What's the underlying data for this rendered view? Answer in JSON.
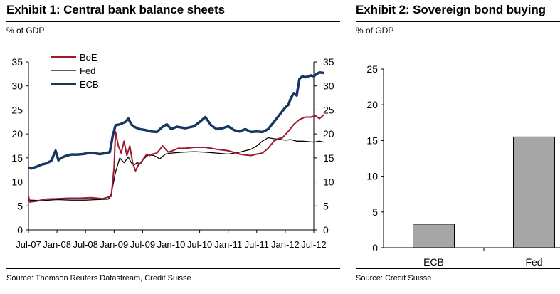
{
  "chart_data": [
    {
      "type": "line",
      "title": "Exhibit 1: Central bank balance sheets",
      "unit_label": "% of GDP",
      "source": "Source: Thomson Reuters Datastream, Credit Suisse",
      "x_ticks": [
        "Jul-07",
        "Jan-08",
        "Jul-08",
        "Jan-09",
        "Jul-09",
        "Jan-10",
        "Jul-10",
        "Jan-11",
        "Jul-11",
        "Jan-12",
        "Jul-12"
      ],
      "ylim": [
        0,
        35
      ],
      "y_ticks": [
        0,
        5,
        10,
        15,
        20,
        25,
        30,
        35
      ],
      "legend": "top-left",
      "series": [
        {
          "name": "BoE",
          "color": "#9b1b30",
          "x": [
            0,
            0.05,
            0.3,
            0.6,
            1.0,
            1.4,
            1.8,
            2.2,
            2.6,
            2.9,
            3.0,
            3.05,
            3.15,
            3.25,
            3.35,
            3.45,
            3.55,
            3.65,
            3.75,
            3.85,
            3.95,
            4.05,
            4.15,
            4.25,
            4.35,
            4.5,
            4.7,
            4.9,
            5.05,
            5.25,
            5.5,
            5.8,
            6.2,
            6.6,
            7.0,
            7.4,
            7.6,
            7.8,
            8.0,
            8.2,
            8.4,
            8.6,
            8.75,
            8.9,
            9.1,
            9.3,
            9.5,
            9.7,
            9.9,
            10.05,
            10.2,
            10.35
          ],
          "values": [
            7.0,
            5.8,
            6.0,
            6.4,
            6.5,
            6.6,
            6.6,
            6.7,
            6.5,
            7.0,
            13.0,
            20.5,
            17.5,
            16.0,
            18.5,
            15.5,
            17.5,
            14.0,
            12.3,
            13.5,
            14.0,
            15.0,
            15.8,
            15.5,
            15.8,
            16.0,
            17.5,
            16.2,
            16.5,
            17.0,
            17.0,
            17.2,
            17.2,
            16.8,
            16.5,
            15.8,
            15.6,
            15.5,
            15.8,
            16.0,
            17.0,
            18.5,
            19.0,
            19.2,
            20.5,
            22.0,
            23.0,
            23.5,
            23.5,
            23.8,
            23.2,
            24.0
          ]
        },
        {
          "name": "Fed",
          "color": "#000000",
          "x": [
            0,
            0.5,
            1.0,
            1.5,
            2.0,
            2.4,
            2.8,
            2.9,
            3.05,
            3.2,
            3.35,
            3.5,
            3.6,
            3.7,
            3.8,
            3.9,
            4.0,
            4.2,
            4.4,
            4.6,
            4.8,
            5.0,
            5.4,
            5.8,
            6.2,
            6.6,
            7.0,
            7.4,
            7.8,
            8.0,
            8.2,
            8.4,
            8.6,
            8.8,
            9.0,
            9.2,
            9.4,
            9.6,
            9.8,
            10.0,
            10.2,
            10.35
          ],
          "values": [
            6.2,
            6.1,
            6.3,
            6.2,
            6.2,
            6.3,
            6.4,
            7.5,
            12.0,
            15.0,
            14.0,
            15.2,
            14.0,
            13.5,
            14.0,
            13.8,
            14.6,
            15.6,
            15.5,
            14.8,
            15.8,
            16.0,
            16.2,
            16.3,
            16.2,
            16.0,
            15.8,
            16.2,
            16.8,
            17.5,
            18.5,
            19.2,
            19.0,
            18.9,
            18.7,
            18.8,
            18.5,
            18.5,
            18.4,
            18.3,
            18.5,
            18.3
          ]
        },
        {
          "name": "ECB",
          "color": "#17375e",
          "x": [
            0,
            0.1,
            0.3,
            0.45,
            0.6,
            0.8,
            0.95,
            1.05,
            1.15,
            1.3,
            1.5,
            1.7,
            1.9,
            2.1,
            2.3,
            2.5,
            2.7,
            2.85,
            2.95,
            3.05,
            3.2,
            3.4,
            3.5,
            3.6,
            3.7,
            3.9,
            4.1,
            4.3,
            4.5,
            4.7,
            4.85,
            5.0,
            5.2,
            5.5,
            5.8,
            6.0,
            6.2,
            6.4,
            6.6,
            6.8,
            7.0,
            7.2,
            7.4,
            7.6,
            7.8,
            8.0,
            8.2,
            8.4,
            8.6,
            8.8,
            9.0,
            9.1,
            9.2,
            9.3,
            9.4,
            9.5,
            9.6,
            9.7,
            9.8,
            9.9,
            10.0,
            10.1,
            10.2,
            10.35
          ],
          "values": [
            13.0,
            12.8,
            13.2,
            13.6,
            13.8,
            14.4,
            16.5,
            14.5,
            15.0,
            15.4,
            15.7,
            15.7,
            15.8,
            16.0,
            16.0,
            15.8,
            16.0,
            16.2,
            19.5,
            21.8,
            22.0,
            22.5,
            23.2,
            22.0,
            21.5,
            21.0,
            20.8,
            20.5,
            20.4,
            21.5,
            22.0,
            21.0,
            21.5,
            21.2,
            21.6,
            22.5,
            23.5,
            21.8,
            21.0,
            21.2,
            21.6,
            20.8,
            20.5,
            21.0,
            20.4,
            20.5,
            20.4,
            21.0,
            22.5,
            24.0,
            25.5,
            26.0,
            27.5,
            28.5,
            28.0,
            31.5,
            32.0,
            31.8,
            32.0,
            32.2,
            32.0,
            32.5,
            32.8,
            32.7
          ]
        }
      ]
    },
    {
      "type": "bar",
      "title": "Exhibit 2: Sovereign bond buying",
      "unit_label": "% of GDP",
      "source": "Source: Credit Suisse",
      "categories": [
        "ECB",
        "Fed"
      ],
      "values": [
        3.3,
        15.5
      ],
      "bar_color": "#a6a6a6",
      "ylim": [
        0,
        25
      ],
      "y_ticks": [
        0,
        5,
        10,
        15,
        20,
        25
      ]
    }
  ]
}
